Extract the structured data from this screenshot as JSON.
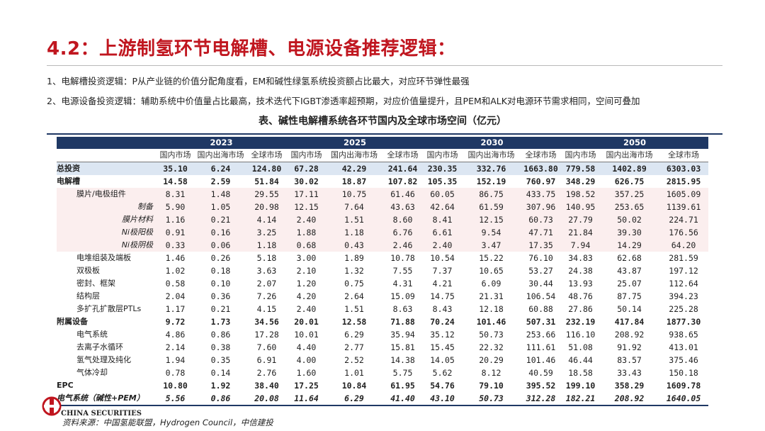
{
  "page": {
    "title": "4.2：上游制氢环节电解槽、电源设备推荐逻辑：",
    "point1": "1、电解槽投资逻辑：P从产业链的价值分配角度看，EM和碱性绿氢系统投资额占比最大，对应环节弹性最强",
    "point2": "2、电源设备投资逻辑：辅助系统中价值量占比最高，技术迭代下IGBT渗透率超预期，对应价值量提升，且PEM和ALK对电源环节需求相同，空间可叠加"
  },
  "table": {
    "caption": "表、碱性电解槽系统各环节国内及全球市场空间（亿元）",
    "years": [
      "2023",
      "2025",
      "2030",
      "2050"
    ],
    "subheaders": [
      "国内市场",
      "国内出海市场",
      "全球市场"
    ],
    "rows": [
      {
        "name": "总投资",
        "level": 0,
        "cls": "total",
        "values": [
          "35.10",
          "6.24",
          "124.80",
          "67.28",
          "42.29",
          "241.64",
          "230.35",
          "332.76",
          "1663.80",
          "779.58",
          "1402.89",
          "6303.03"
        ]
      },
      {
        "name": "电解槽",
        "level": 0,
        "cls": "",
        "values": [
          "14.58",
          "2.59",
          "51.84",
          "30.02",
          "18.87",
          "107.82",
          "105.35",
          "152.19",
          "760.97",
          "348.29",
          "626.75",
          "2815.95"
        ]
      },
      {
        "name": "膜片/电极组件",
        "level": 1,
        "cls": "pink",
        "values": [
          "8.31",
          "1.48",
          "29.55",
          "17.11",
          "10.75",
          "61.46",
          "60.05",
          "86.75",
          "433.75",
          "198.52",
          "357.25",
          "1605.09"
        ]
      },
      {
        "name": "制备",
        "level": 2,
        "cls": "pink",
        "values": [
          "5.90",
          "1.05",
          "20.98",
          "12.15",
          "7.64",
          "43.63",
          "42.64",
          "61.59",
          "307.96",
          "140.95",
          "253.65",
          "1139.61"
        ]
      },
      {
        "name": "膜片材料",
        "level": 2,
        "cls": "pink",
        "values": [
          "1.16",
          "0.21",
          "4.14",
          "2.40",
          "1.51",
          "8.60",
          "8.41",
          "12.15",
          "60.73",
          "27.79",
          "50.02",
          "224.71"
        ]
      },
      {
        "name": "Ni极阳极",
        "level": 2,
        "cls": "pink",
        "values": [
          "0.91",
          "0.16",
          "3.25",
          "1.88",
          "1.18",
          "6.76",
          "6.61",
          "9.54",
          "47.71",
          "21.84",
          "39.30",
          "176.56"
        ]
      },
      {
        "name": "Ni极阴极",
        "level": 2,
        "cls": "pink",
        "values": [
          "0.33",
          "0.06",
          "1.18",
          "0.68",
          "0.43",
          "2.46",
          "2.40",
          "3.47",
          "17.35",
          "7.94",
          "14.29",
          "64.20"
        ]
      },
      {
        "name": "电堆组装及端板",
        "level": 1,
        "cls": "",
        "values": [
          "1.46",
          "0.26",
          "5.18",
          "3.00",
          "1.89",
          "10.78",
          "10.54",
          "15.22",
          "76.10",
          "34.83",
          "62.68",
          "281.59"
        ]
      },
      {
        "name": "双极板",
        "level": 1,
        "cls": "",
        "values": [
          "1.02",
          "0.18",
          "3.63",
          "2.10",
          "1.32",
          "7.55",
          "7.37",
          "10.65",
          "53.27",
          "24.38",
          "43.87",
          "197.12"
        ]
      },
      {
        "name": "密封、框架",
        "level": 1,
        "cls": "",
        "values": [
          "0.58",
          "0.10",
          "2.07",
          "1.20",
          "0.75",
          "4.31",
          "4.21",
          "6.09",
          "30.44",
          "13.93",
          "25.07",
          "112.64"
        ]
      },
      {
        "name": "结构层",
        "level": 1,
        "cls": "",
        "values": [
          "2.04",
          "0.36",
          "7.26",
          "4.20",
          "2.64",
          "15.09",
          "14.75",
          "21.31",
          "106.54",
          "48.76",
          "87.75",
          "394.23"
        ]
      },
      {
        "name": "多扩孔扩散层PTLs",
        "level": 1,
        "cls": "",
        "values": [
          "1.17",
          "0.21",
          "4.15",
          "2.40",
          "1.51",
          "8.63",
          "8.43",
          "12.18",
          "60.88",
          "27.86",
          "50.14",
          "225.28"
        ]
      },
      {
        "name": "附属设备",
        "level": 0,
        "cls": "",
        "values": [
          "9.72",
          "1.73",
          "34.56",
          "20.01",
          "12.58",
          "71.88",
          "70.24",
          "101.46",
          "507.31",
          "232.19",
          "417.84",
          "1877.30"
        ]
      },
      {
        "name": "电气系统",
        "level": 1,
        "cls": "",
        "values": [
          "4.86",
          "0.86",
          "17.28",
          "10.01",
          "6.29",
          "35.94",
          "35.12",
          "50.73",
          "253.66",
          "116.10",
          "208.92",
          "938.65"
        ]
      },
      {
        "name": "去离子水循环",
        "level": 1,
        "cls": "",
        "values": [
          "2.14",
          "0.38",
          "7.60",
          "4.40",
          "2.77",
          "15.81",
          "15.45",
          "22.32",
          "111.61",
          "51.08",
          "91.92",
          "413.01"
        ]
      },
      {
        "name": "氢气处理及纯化",
        "level": 1,
        "cls": "",
        "values": [
          "1.94",
          "0.35",
          "6.91",
          "4.00",
          "2.52",
          "14.38",
          "14.05",
          "20.29",
          "101.46",
          "46.44",
          "83.57",
          "375.46"
        ]
      },
      {
        "name": "气体冷却",
        "level": 1,
        "cls": "",
        "values": [
          "0.78",
          "0.14",
          "2.76",
          "1.60",
          "1.01",
          "5.75",
          "5.62",
          "8.12",
          "40.59",
          "18.58",
          "33.43",
          "150.18"
        ]
      },
      {
        "name": "EPC",
        "level": 0,
        "cls": "",
        "values": [
          "10.80",
          "1.92",
          "38.40",
          "17.25",
          "10.84",
          "61.95",
          "54.76",
          "79.10",
          "395.52",
          "199.10",
          "358.29",
          "1609.78"
        ]
      },
      {
        "name": "电气系统（碱性+PEM）",
        "level": 0,
        "cls": "last",
        "values": [
          "5.56",
          "0.86",
          "20.08",
          "11.64",
          "6.29",
          "41.40",
          "43.10",
          "50.73",
          "312.28",
          "182.21",
          "208.92",
          "1640.05"
        ]
      }
    ]
  },
  "footer": {
    "brand": "CHINA SECURITIES",
    "source": "资料来源：中国氢能联盟，Hydrogen Council，中信建投",
    "logo_color": "#c0161f"
  }
}
